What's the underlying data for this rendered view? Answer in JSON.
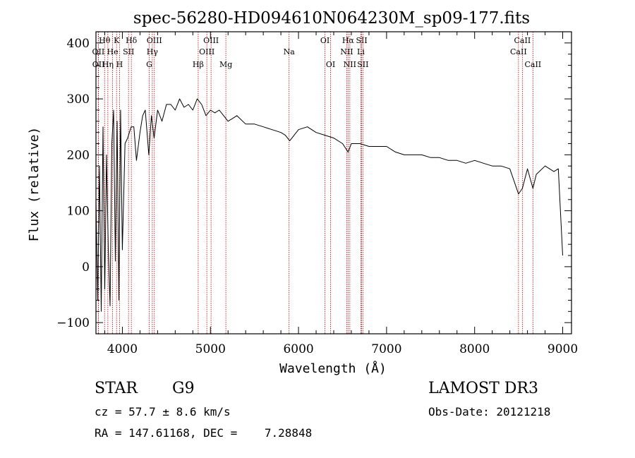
{
  "colors": {
    "spectrum": "#000000",
    "line_marker": "#c00000",
    "axes": "#000000",
    "background": "#ffffff"
  },
  "chart_data": {
    "type": "line",
    "title": "spec-56280-HD094610N064230M_sp09-177.fits",
    "xlabel": "Wavelength (Å)",
    "ylabel": "Flux (relative)",
    "xlim": [
      3700,
      9100
    ],
    "ylim": [
      -120,
      420
    ],
    "xticks": [
      4000,
      5000,
      6000,
      7000,
      8000,
      9000
    ],
    "xtick_labels": [
      "4000",
      "5000",
      "6000",
      "7000",
      "8000",
      "9000"
    ],
    "yticks": [
      -100,
      0,
      100,
      200,
      300,
      400
    ],
    "ytick_labels": [
      "−100",
      "0",
      "100",
      "200",
      "300",
      "400"
    ],
    "series": [
      {
        "name": "flux",
        "x": [
          3700,
          3720,
          3740,
          3760,
          3780,
          3800,
          3820,
          3840,
          3860,
          3880,
          3900,
          3920,
          3940,
          3960,
          3980,
          4000,
          4030,
          4060,
          4100,
          4130,
          4160,
          4200,
          4230,
          4260,
          4300,
          4330,
          4360,
          4400,
          4450,
          4500,
          4550,
          4600,
          4650,
          4700,
          4750,
          4800,
          4850,
          4900,
          4950,
          5000,
          5050,
          5100,
          5150,
          5200,
          5250,
          5300,
          5400,
          5500,
          5600,
          5700,
          5800,
          5850,
          5900,
          6000,
          6100,
          6200,
          6300,
          6400,
          6500,
          6563,
          6600,
          6700,
          6800,
          6900,
          7000,
          7100,
          7200,
          7300,
          7400,
          7500,
          7600,
          7700,
          7800,
          7900,
          8000,
          8100,
          8200,
          8300,
          8400,
          8498,
          8542,
          8600,
          8662,
          8700,
          8800,
          8900,
          8950,
          9000
        ],
        "values": [
          120,
          -60,
          180,
          -80,
          250,
          -40,
          200,
          30,
          -70,
          220,
          280,
          10,
          260,
          -60,
          280,
          30,
          220,
          230,
          250,
          250,
          190,
          240,
          270,
          280,
          200,
          270,
          230,
          280,
          260,
          290,
          290,
          280,
          300,
          285,
          290,
          280,
          300,
          290,
          270,
          280,
          275,
          280,
          270,
          260,
          265,
          270,
          255,
          255,
          250,
          245,
          240,
          235,
          225,
          245,
          250,
          240,
          235,
          230,
          220,
          205,
          220,
          220,
          215,
          215,
          215,
          205,
          200,
          200,
          200,
          195,
          195,
          190,
          190,
          185,
          190,
          185,
          180,
          180,
          175,
          130,
          140,
          175,
          140,
          165,
          180,
          170,
          175,
          20
        ]
      }
    ],
    "line_markers": [
      {
        "label": "Hθ",
        "wavelength": 3798,
        "row": 1
      },
      {
        "label": "K",
        "wavelength": 3934,
        "row": 1
      },
      {
        "label": "Hδ",
        "wavelength": 4102,
        "row": 1
      },
      {
        "label": "OIII",
        "wavelength": 4363,
        "row": 1
      },
      {
        "label": "OIII",
        "wavelength": 5007,
        "row": 1
      },
      {
        "label": "OI",
        "wavelength": 6300,
        "row": 1
      },
      {
        "label": "Hα",
        "wavelength": 6563,
        "row": 1
      },
      {
        "label": "SII",
        "wavelength": 6717,
        "row": 1
      },
      {
        "label": "CaII",
        "wavelength": 8542,
        "row": 1
      },
      {
        "label": "OII",
        "wavelength": 3727,
        "row": 2
      },
      {
        "label": "He",
        "wavelength": 3889,
        "row": 2
      },
      {
        "label": "SII",
        "wavelength": 4070,
        "row": 2
      },
      {
        "label": "Hγ",
        "wavelength": 4340,
        "row": 2
      },
      {
        "label": "OIII",
        "wavelength": 4959,
        "row": 2
      },
      {
        "label": "Na",
        "wavelength": 5893,
        "row": 2
      },
      {
        "label": "NII",
        "wavelength": 6548,
        "row": 2
      },
      {
        "label": "Li",
        "wavelength": 6708,
        "row": 2
      },
      {
        "label": "CaII",
        "wavelength": 8498,
        "row": 2
      },
      {
        "label": "OII",
        "wavelength": 3729,
        "row": 3
      },
      {
        "label": "Hη",
        "wavelength": 3835,
        "row": 3
      },
      {
        "label": "H",
        "wavelength": 3968,
        "row": 3
      },
      {
        "label": "G",
        "wavelength": 4305,
        "row": 3
      },
      {
        "label": "Hβ",
        "wavelength": 4861,
        "row": 3
      },
      {
        "label": "Mg",
        "wavelength": 5175,
        "row": 3
      },
      {
        "label": "OI",
        "wavelength": 6364,
        "row": 3
      },
      {
        "label": "NII",
        "wavelength": 6583,
        "row": 3
      },
      {
        "label": "SII",
        "wavelength": 6731,
        "row": 3
      },
      {
        "label": "CaII",
        "wavelength": 8662,
        "row": 3
      }
    ]
  },
  "info": {
    "object_class": "STAR",
    "subclass": "G9",
    "survey": "LAMOST DR3",
    "cz": "cz = 57.7 ± 8.6 km/s",
    "obs_date": "Obs-Date: 20121218",
    "coords": "RA = 147.61168, DEC =    7.28848"
  }
}
